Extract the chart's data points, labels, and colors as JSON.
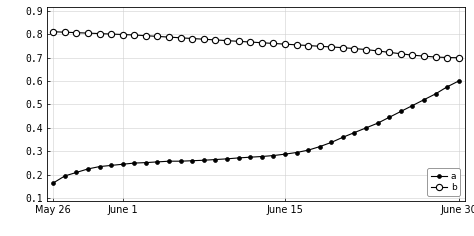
{
  "title": "",
  "ylim": [
    0.09,
    0.915
  ],
  "yticks": [
    0.1,
    0.2,
    0.3,
    0.4,
    0.5,
    0.6,
    0.7,
    0.8,
    0.9
  ],
  "ytick_labels": [
    "0.1",
    "0.2",
    "0.3",
    "0.4",
    "0.5",
    "0.6",
    "0.7",
    "0.8",
    "0.9"
  ],
  "xtick_labels": [
    "May 26",
    "June 1",
    "June 15",
    "June 30"
  ],
  "xtick_days": [
    0,
    6,
    20,
    35
  ],
  "n_days": 36,
  "legend_labels": [
    "a",
    "b"
  ],
  "line_color": "#000000",
  "background_color": "#ffffff",
  "a_values": [
    0.165,
    0.195,
    0.21,
    0.225,
    0.235,
    0.24,
    0.245,
    0.25,
    0.252,
    0.255,
    0.258,
    0.258,
    0.26,
    0.262,
    0.265,
    0.268,
    0.272,
    0.275,
    0.278,
    0.282,
    0.288,
    0.295,
    0.305,
    0.32,
    0.338,
    0.36,
    0.38,
    0.4,
    0.42,
    0.445,
    0.47,
    0.495,
    0.52,
    0.545,
    0.575,
    0.6
  ],
  "b_values": [
    0.81,
    0.808,
    0.806,
    0.804,
    0.802,
    0.8,
    0.798,
    0.796,
    0.793,
    0.79,
    0.787,
    0.784,
    0.781,
    0.778,
    0.775,
    0.772,
    0.769,
    0.766,
    0.763,
    0.76,
    0.757,
    0.754,
    0.751,
    0.748,
    0.745,
    0.742,
    0.738,
    0.734,
    0.728,
    0.722,
    0.716,
    0.71,
    0.706,
    0.702,
    0.7,
    0.699
  ]
}
